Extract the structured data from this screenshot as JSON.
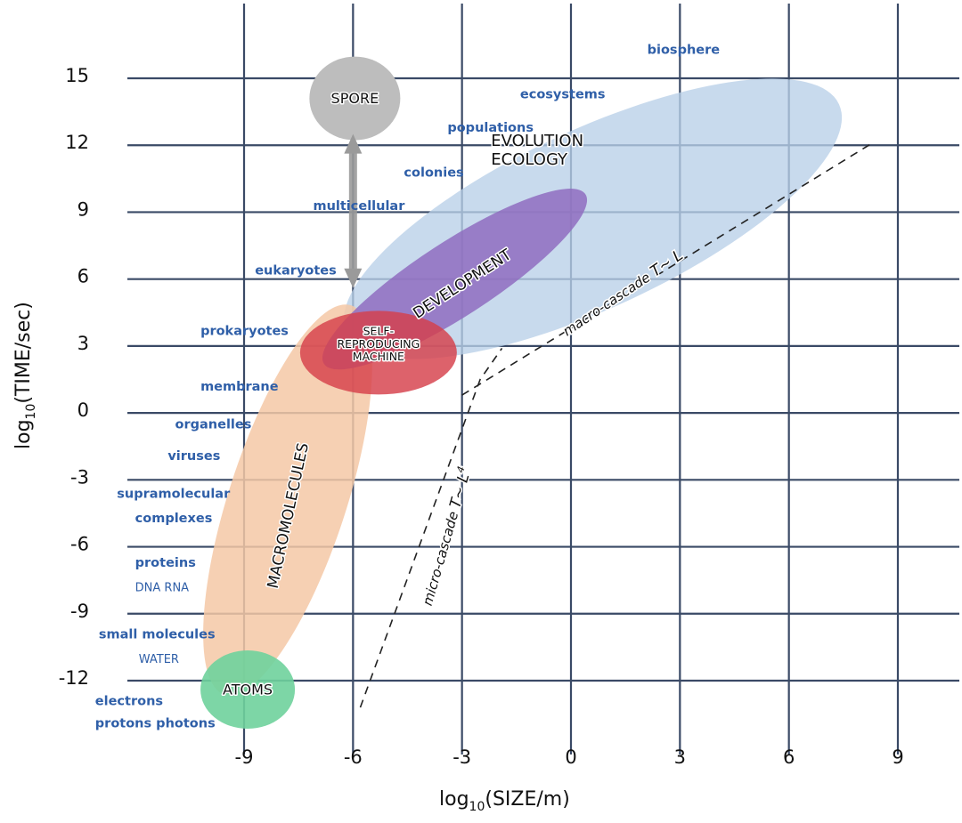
{
  "chart_data": {
    "type": "scatter",
    "title": "",
    "xlabel": "log10(SIZE/m)",
    "ylabel": "log10(TIME/sec)",
    "xlabel_parts": {
      "pre": "log",
      "sub": "10",
      "post": "(SIZE/m)"
    },
    "ylabel_parts": {
      "pre": "log",
      "sub": "10",
      "post": "(TIME/sec)"
    },
    "xlim": [
      -9,
      9
    ],
    "ylim": [
      -12,
      15
    ],
    "x_ticks": [
      -9,
      -6,
      -3,
      0,
      3,
      6,
      9
    ],
    "y_ticks": [
      15,
      12,
      9,
      6,
      3,
      0,
      -3,
      -6,
      -9,
      -12
    ],
    "x_tick_labels": [
      "-9",
      "-6",
      "-3",
      "0",
      "3",
      "6",
      "9"
    ],
    "y_tick_labels": [
      "15",
      "12",
      "9",
      "6",
      "3",
      "0",
      "-3",
      "-6",
      "-9",
      "-12"
    ],
    "grid": true,
    "regions": [
      {
        "name": "EVOLUTION ECOLOGY",
        "lines": [
          "EVOLUTION",
          "ECOLOGY"
        ],
        "color": "#b9cfe8",
        "center": [
          0.6,
          8.7
        ],
        "text_at": [
          -2.2,
          11.8
        ],
        "size": 18
      },
      {
        "name": "MACROMOLECULES",
        "lines": [
          "MACROMOLECULES"
        ],
        "color": "#f5c8a6",
        "center": [
          -7.8,
          -3.9
        ],
        "text_at": [
          -7.8,
          -4.6
        ],
        "rotate": -78,
        "size": 17
      },
      {
        "name": "DEVELOPMENT",
        "lines": [
          "DEVELOPMENT"
        ],
        "color": "#8f6cc0",
        "center": [
          -3.2,
          6.0
        ],
        "text_at": [
          -3.0,
          5.8
        ],
        "rotate": -33,
        "size": 17
      },
      {
        "name": "SELF-REPRODUCING MACHINE",
        "lines": [
          "SELF-",
          "REPRODUCING",
          "MACHINE"
        ],
        "color": "#d6404a",
        "center": [
          -5.3,
          2.7
        ],
        "text_at": [
          -5.3,
          3.1
        ],
        "size": 12.5
      },
      {
        "name": "SPORE",
        "lines": [
          "SPORE"
        ],
        "color": "#bdbdbd",
        "center": [
          -5.95,
          14.1
        ],
        "text_at": [
          -5.95,
          14.1
        ],
        "size": 16
      },
      {
        "name": "ATOMS",
        "lines": [
          "ATOMS"
        ],
        "color": "#6fd19c",
        "center": [
          -8.9,
          -12.4
        ],
        "text_at": [
          -8.9,
          -12.4
        ],
        "size": 16
      }
    ],
    "arrow": {
      "name": "spore-life-cycle-arrow",
      "from": [
        -6,
        12.5
      ],
      "to": [
        -6,
        5.6
      ],
      "bidirectional": true,
      "color": "#9a9a9a"
    },
    "annotations": [
      {
        "text": "biosphere",
        "x": 2.1,
        "y": 16.1
      },
      {
        "text": "ecosystems",
        "x": -1.4,
        "y": 14.1
      },
      {
        "text": "populations",
        "x": -3.4,
        "y": 12.6
      },
      {
        "text": "colonies",
        "x": -4.6,
        "y": 10.6
      },
      {
        "text": "multicellular",
        "x": -7.1,
        "y": 9.1
      },
      {
        "text": "eukaryotes",
        "x": -8.7,
        "y": 6.2
      },
      {
        "text": "prokaryotes",
        "x": -10.2,
        "y": 3.5
      },
      {
        "text": "membrane",
        "x": -10.2,
        "y": 1.0
      },
      {
        "text": "organelles",
        "x": -10.9,
        "y": -0.7
      },
      {
        "text": "viruses",
        "x": -11.1,
        "y": -2.1
      },
      {
        "text": "supramolecular",
        "x": -12.5,
        "y": -3.8
      },
      {
        "text": "complexes",
        "x": -12.0,
        "y": -4.9
      },
      {
        "text": "proteins",
        "x": -12.0,
        "y": -6.9
      },
      {
        "text": "DNA RNA",
        "x": -12.0,
        "y": -8.0,
        "caps": true
      },
      {
        "text": "small molecules",
        "x": -13.0,
        "y": -10.1
      },
      {
        "text": "WATER",
        "x": -11.9,
        "y": -11.2,
        "caps": true
      },
      {
        "text": "electrons",
        "x": -13.1,
        "y": -13.1
      },
      {
        "text": "protons photons",
        "x": -13.1,
        "y": -14.1
      }
    ],
    "cascades": [
      {
        "name": "macro-cascade",
        "label": "macro-cascade",
        "relation": "T~ L",
        "exponent": "",
        "points": [
          [
            -3,
            0.8
          ],
          [
            8.3,
            12.1
          ]
        ],
        "label_at": [
          1.5,
          5.2
        ],
        "label_rotate": -34
      },
      {
        "name": "micro-cascade",
        "label": "micro-cascade",
        "relation": "T~ L",
        "exponent": "4",
        "points": [
          [
            -5.8,
            -13.2
          ],
          [
            -2.5,
            1.5
          ],
          [
            -1.9,
            2.9
          ]
        ],
        "label_at": [
          -3.3,
          -5.6
        ],
        "label_rotate": -74
      }
    ]
  }
}
